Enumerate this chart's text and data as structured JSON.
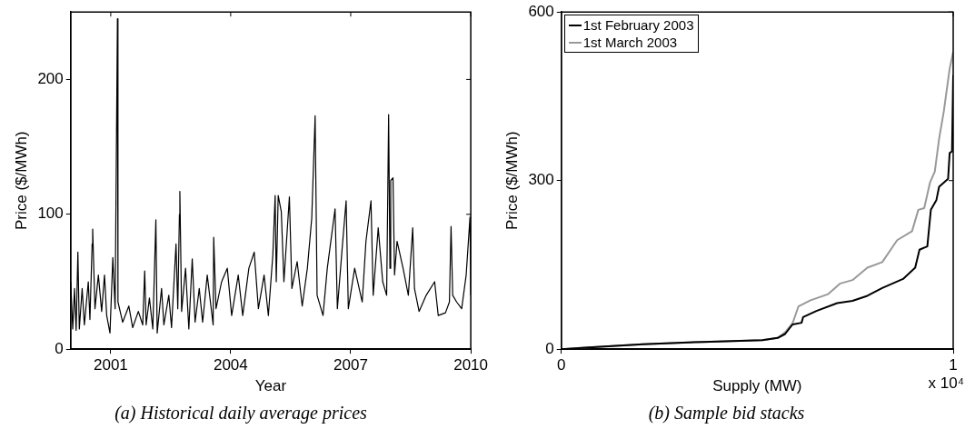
{
  "chart_data": [
    {
      "type": "line",
      "title": "(a) Historical daily average prices",
      "xlabel": "Year",
      "ylabel": "Price ($/MWh)",
      "x": [
        "2000-01-01",
        "2000-01-20",
        "2000-02-05",
        "2000-02-20",
        "2000-03-07",
        "2000-03-20",
        "2000-04-15",
        "2000-05-05",
        "2000-06-10",
        "2000-06-25",
        "2000-07-15",
        "2000-07-20",
        "2000-08-10",
        "2000-09-10",
        "2000-10-10",
        "2000-11-05",
        "2000-11-25",
        "2000-12-25",
        "2001-01-20",
        "2001-02-10",
        "2001-03-03",
        "2001-03-08",
        "2001-04-20",
        "2001-06-15",
        "2001-07-20",
        "2001-09-10",
        "2001-10-20",
        "2001-11-07",
        "2001-11-20",
        "2001-12-20",
        "2002-01-20",
        "2002-02-17",
        "2002-03-01",
        "2002-04-10",
        "2002-05-01",
        "2002-06-15",
        "2002-07-10",
        "2002-08-20",
        "2002-09-05",
        "2002-09-20",
        "2002-09-24",
        "2002-10-10",
        "2002-11-15",
        "2002-12-15",
        "2003-01-15",
        "2003-02-10",
        "2003-03-20",
        "2003-04-20",
        "2003-06-01",
        "2003-07-25",
        "2003-07-30",
        "2003-08-20",
        "2003-10-10",
        "2003-12-01",
        "2004-01-10",
        "2004-03-10",
        "2004-04-20",
        "2004-06-15",
        "2004-08-03",
        "2004-09-10",
        "2004-11-01",
        "2004-12-10",
        "2005-01-20",
        "2005-02-10",
        "2005-02-20",
        "2005-03-10",
        "2005-04-07",
        "2005-05-01",
        "2005-06-20",
        "2005-07-13",
        "2005-08-30",
        "2005-10-15",
        "2005-12-01",
        "2006-01-10",
        "2006-02-10",
        "2006-02-28",
        "2006-04-23",
        "2006-06-01",
        "2006-08-11",
        "2006-09-01",
        "2006-10-15",
        "2006-11-20",
        "2006-12-10",
        "2007-02-06",
        "2007-04-16",
        "2007-05-20",
        "2007-07-05",
        "2007-07-25",
        "2007-09-09",
        "2007-10-20",
        "2007-11-25",
        "2007-12-13",
        "2007-12-25",
        "2008-01-01",
        "2008-01-22",
        "2008-02-05",
        "2008-02-28",
        "2008-04-23",
        "2008-06-10",
        "2008-07-20",
        "2008-08-05",
        "2008-09-16",
        "2008-11-20",
        "2009-02-05",
        "2009-03-10",
        "2009-05-15",
        "2009-06-20",
        "2009-07-05",
        "2009-07-20",
        "2009-08-25",
        "2009-10-10",
        "2009-11-20",
        "2009-12-25",
        "2010-01-01"
      ],
      "series": [
        {
          "color": "#000000",
          "values": [
            50,
            15,
            45,
            14,
            72,
            15,
            45,
            18,
            50,
            22,
            78,
            89,
            30,
            55,
            28,
            55,
            25,
            12,
            68,
            30,
            245,
            35,
            20,
            32,
            16,
            28,
            18,
            58,
            18,
            38,
            15,
            96,
            12,
            45,
            18,
            40,
            16,
            78,
            30,
            100,
            117,
            28,
            60,
            15,
            67,
            20,
            45,
            20,
            55,
            18,
            83,
            30,
            50,
            60,
            25,
            55,
            25,
            60,
            72,
            30,
            55,
            25,
            70,
            114,
            50,
            114,
            102,
            50,
            113,
            45,
            65,
            32,
            60,
            97,
            173,
            40,
            25,
            60,
            104,
            30,
            75,
            110,
            30,
            60,
            35,
            80,
            110,
            40,
            90,
            50,
            40,
            174,
            60,
            125,
            127,
            55,
            80,
            60,
            40,
            90,
            45,
            28,
            40,
            50,
            25,
            27,
            35,
            91,
            40,
            35,
            30,
            55,
            98,
            40
          ]
        }
      ],
      "xlim": [
        "2000-01-01",
        "2010-01-01"
      ],
      "xticks": [
        "2001",
        "2004",
        "2007",
        "2010"
      ],
      "ylim": [
        0,
        250
      ],
      "yticks": [
        0,
        100,
        200
      ],
      "grid": false
    },
    {
      "type": "line",
      "title": "(b) Sample bid stacks",
      "xlabel": "Supply (MW)",
      "ylabel": "Price ($/MWh)",
      "legend": "top left",
      "annotations": [
        "x 10⁴"
      ],
      "series": [
        {
          "name": "1st February 2003",
          "color": "#000000",
          "x": [
            0,
            0.07,
            0.208,
            0.361,
            0.513,
            0.552,
            0.571,
            0.59,
            0.613,
            0.617,
            0.651,
            0.704,
            0.743,
            0.781,
            0.819,
            0.872,
            0.903,
            0.914,
            0.934,
            0.943,
            0.957,
            0.964,
            0.987,
            0.991,
            0.997,
            1
          ],
          "values": [
            0,
            3,
            9,
            13,
            16,
            20,
            27,
            44,
            47,
            57,
            68,
            82,
            86,
            95,
            109,
            125,
            145,
            177,
            183,
            248,
            265,
            289,
            303,
            349,
            352,
            488
          ]
        },
        {
          "name": "1st March 2003",
          "color": "#999999",
          "x": [
            0,
            0.07,
            0.208,
            0.361,
            0.513,
            0.552,
            0.571,
            0.59,
            0.605,
            0.636,
            0.681,
            0.712,
            0.743,
            0.781,
            0.819,
            0.857,
            0.895,
            0.911,
            0.926,
            0.941,
            0.953,
            0.964,
            0.976,
            0.991,
            1
          ],
          "values": [
            0,
            3,
            9,
            13,
            16,
            20,
            30,
            46,
            76,
            87,
            98,
            117,
            123,
            145,
            155,
            194,
            210,
            248,
            251,
            297,
            316,
            374,
            423,
            499,
            529
          ]
        }
      ],
      "xlim": [
        0,
        1
      ],
      "xticks": [
        0,
        1
      ],
      "ylim": [
        0,
        600
      ],
      "yticks": [
        0,
        300,
        600
      ],
      "grid": false
    }
  ]
}
